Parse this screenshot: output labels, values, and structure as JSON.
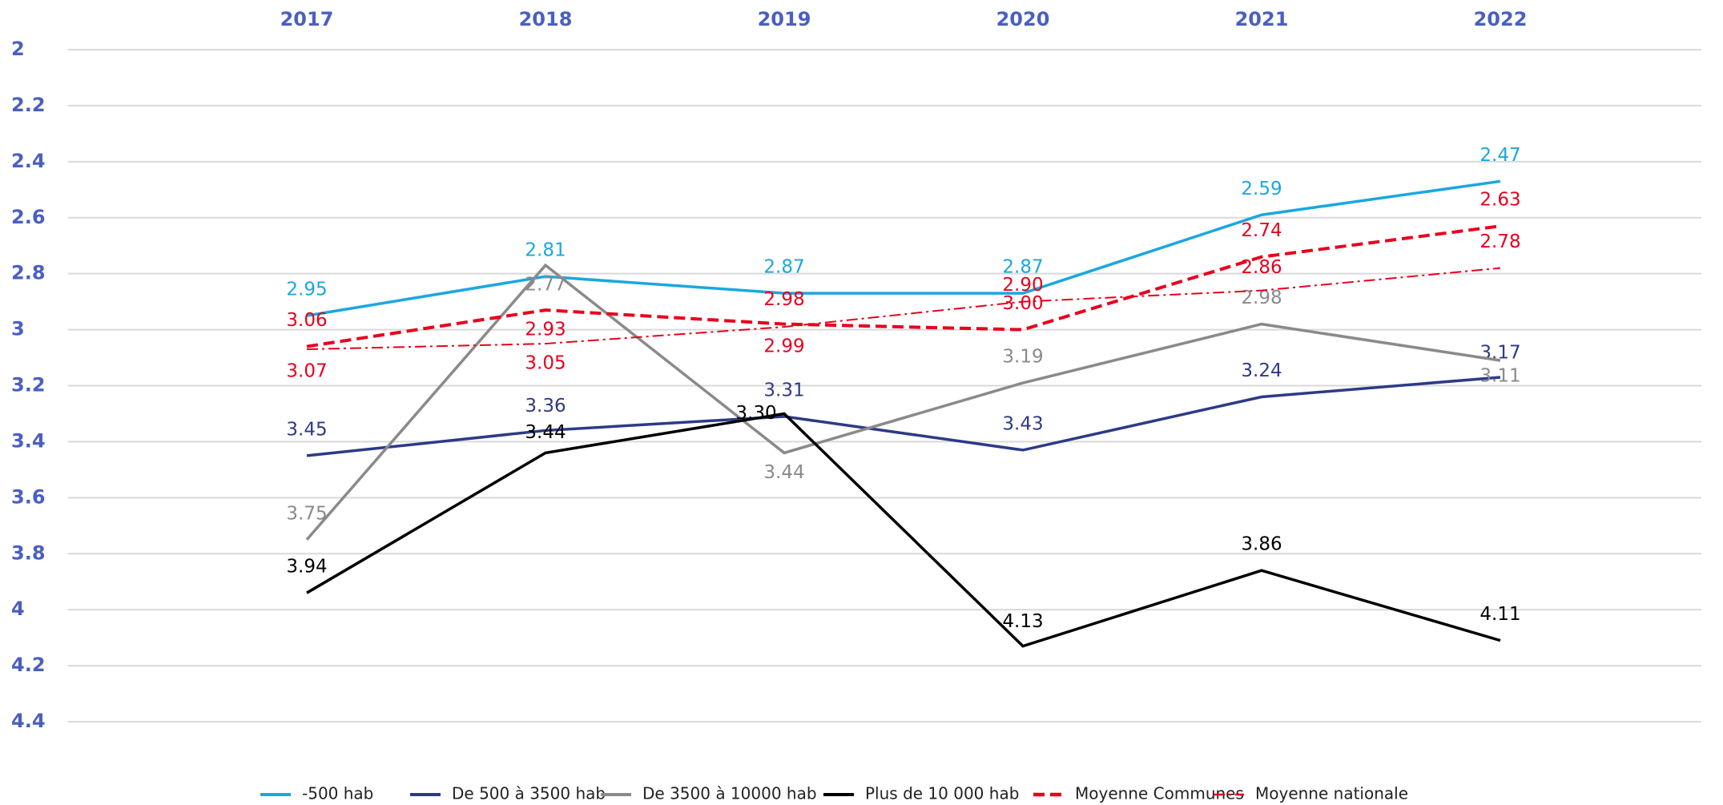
{
  "chart_data": {
    "type": "line",
    "categories": [
      "2017",
      "2018",
      "2019",
      "2020",
      "2021",
      "2022"
    ],
    "ylim": [
      2,
      4.4
    ],
    "y_inverted": true,
    "yticks": [
      2,
      2.2,
      2.4,
      2.6,
      2.8,
      3,
      3.2,
      3.4,
      3.6,
      3.8,
      4,
      4.2,
      4.4
    ],
    "grid": true,
    "legend": "bottom",
    "series": [
      {
        "name": "-500 hab",
        "color": "#1aa7e0",
        "dash": "solid",
        "values": [
          2.95,
          2.81,
          2.87,
          2.87,
          2.59,
          2.47
        ],
        "value_labels": [
          "2.95",
          "2.81",
          "2.87",
          "2.87",
          "2.59",
          "2.47"
        ]
      },
      {
        "name": "De 500 à 3500 hab",
        "color": "#2e3a87",
        "dash": "solid",
        "values": [
          3.45,
          3.36,
          3.31,
          3.43,
          3.24,
          3.17
        ],
        "value_labels": [
          "3.45",
          "3.36",
          "3.31",
          "3.43",
          "3.24",
          "3.17"
        ]
      },
      {
        "name": "De 3500 à 10000 hab",
        "color": "#8a8a8a",
        "dash": "solid",
        "values": [
          3.75,
          2.77,
          3.44,
          3.19,
          2.98,
          3.11
        ],
        "value_labels": [
          "3.75",
          "2.77",
          "3.44",
          "3.19",
          "2.98",
          "3.11"
        ]
      },
      {
        "name": "Plus de 10 000 hab",
        "color": "#000000",
        "dash": "solid",
        "values": [
          3.94,
          3.44,
          3.3,
          4.13,
          3.86,
          4.11
        ],
        "value_labels": [
          "3.94",
          "3.44",
          "3.30",
          "4.13",
          "3.86",
          "4.11"
        ]
      },
      {
        "name": "Moyenne Communes",
        "color": "#e8001c",
        "dash": "dashed",
        "values": [
          3.06,
          2.93,
          2.98,
          3.0,
          2.74,
          2.63
        ],
        "value_labels": [
          "3.06",
          "2.93",
          "2.98",
          "3.00",
          "2.74",
          "2.63"
        ]
      },
      {
        "name": "Moyenne nationale",
        "color": "#e8001c",
        "dash": "dashdot",
        "values": [
          3.07,
          3.05,
          2.99,
          2.9,
          2.86,
          2.78
        ],
        "value_labels": [
          "3.07",
          "3.05",
          "2.99",
          "2.90",
          "2.86",
          "2.78"
        ]
      }
    ]
  }
}
